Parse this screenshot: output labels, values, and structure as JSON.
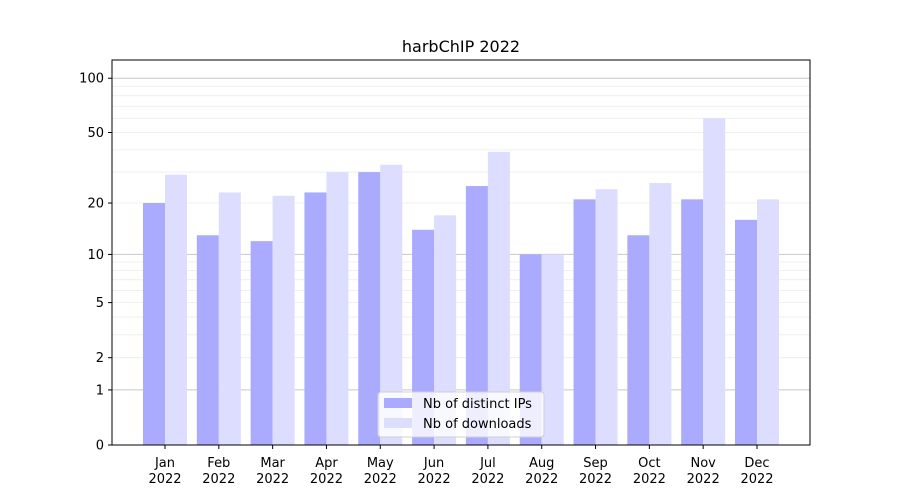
{
  "chart_data": {
    "type": "bar",
    "title": "harbChIP 2022",
    "xlabel": "",
    "ylabel": "",
    "yscale": "log(1+x)",
    "ylim": [
      0,
      126
    ],
    "yticks": [
      0,
      1,
      2,
      5,
      10,
      20,
      50,
      100
    ],
    "grid": true,
    "legend_placement": "lower center",
    "categories": [
      "Jan\n2022",
      "Feb\n2022",
      "Mar\n2022",
      "Apr\n2022",
      "May\n2022",
      "Jun\n2022",
      "Jul\n2022",
      "Aug\n2022",
      "Sep\n2022",
      "Oct\n2022",
      "Nov\n2022",
      "Dec\n2022"
    ],
    "series": [
      {
        "name": "Nb of distinct IPs",
        "color": "#aaaaff",
        "values": [
          20,
          13,
          12,
          23,
          30,
          14,
          25,
          10,
          21,
          13,
          21,
          16
        ]
      },
      {
        "name": "Nb of downloads",
        "color": "#ddddff",
        "values": [
          29,
          23,
          22,
          30,
          33,
          17,
          39,
          10,
          24,
          26,
          60,
          21
        ]
      }
    ]
  }
}
